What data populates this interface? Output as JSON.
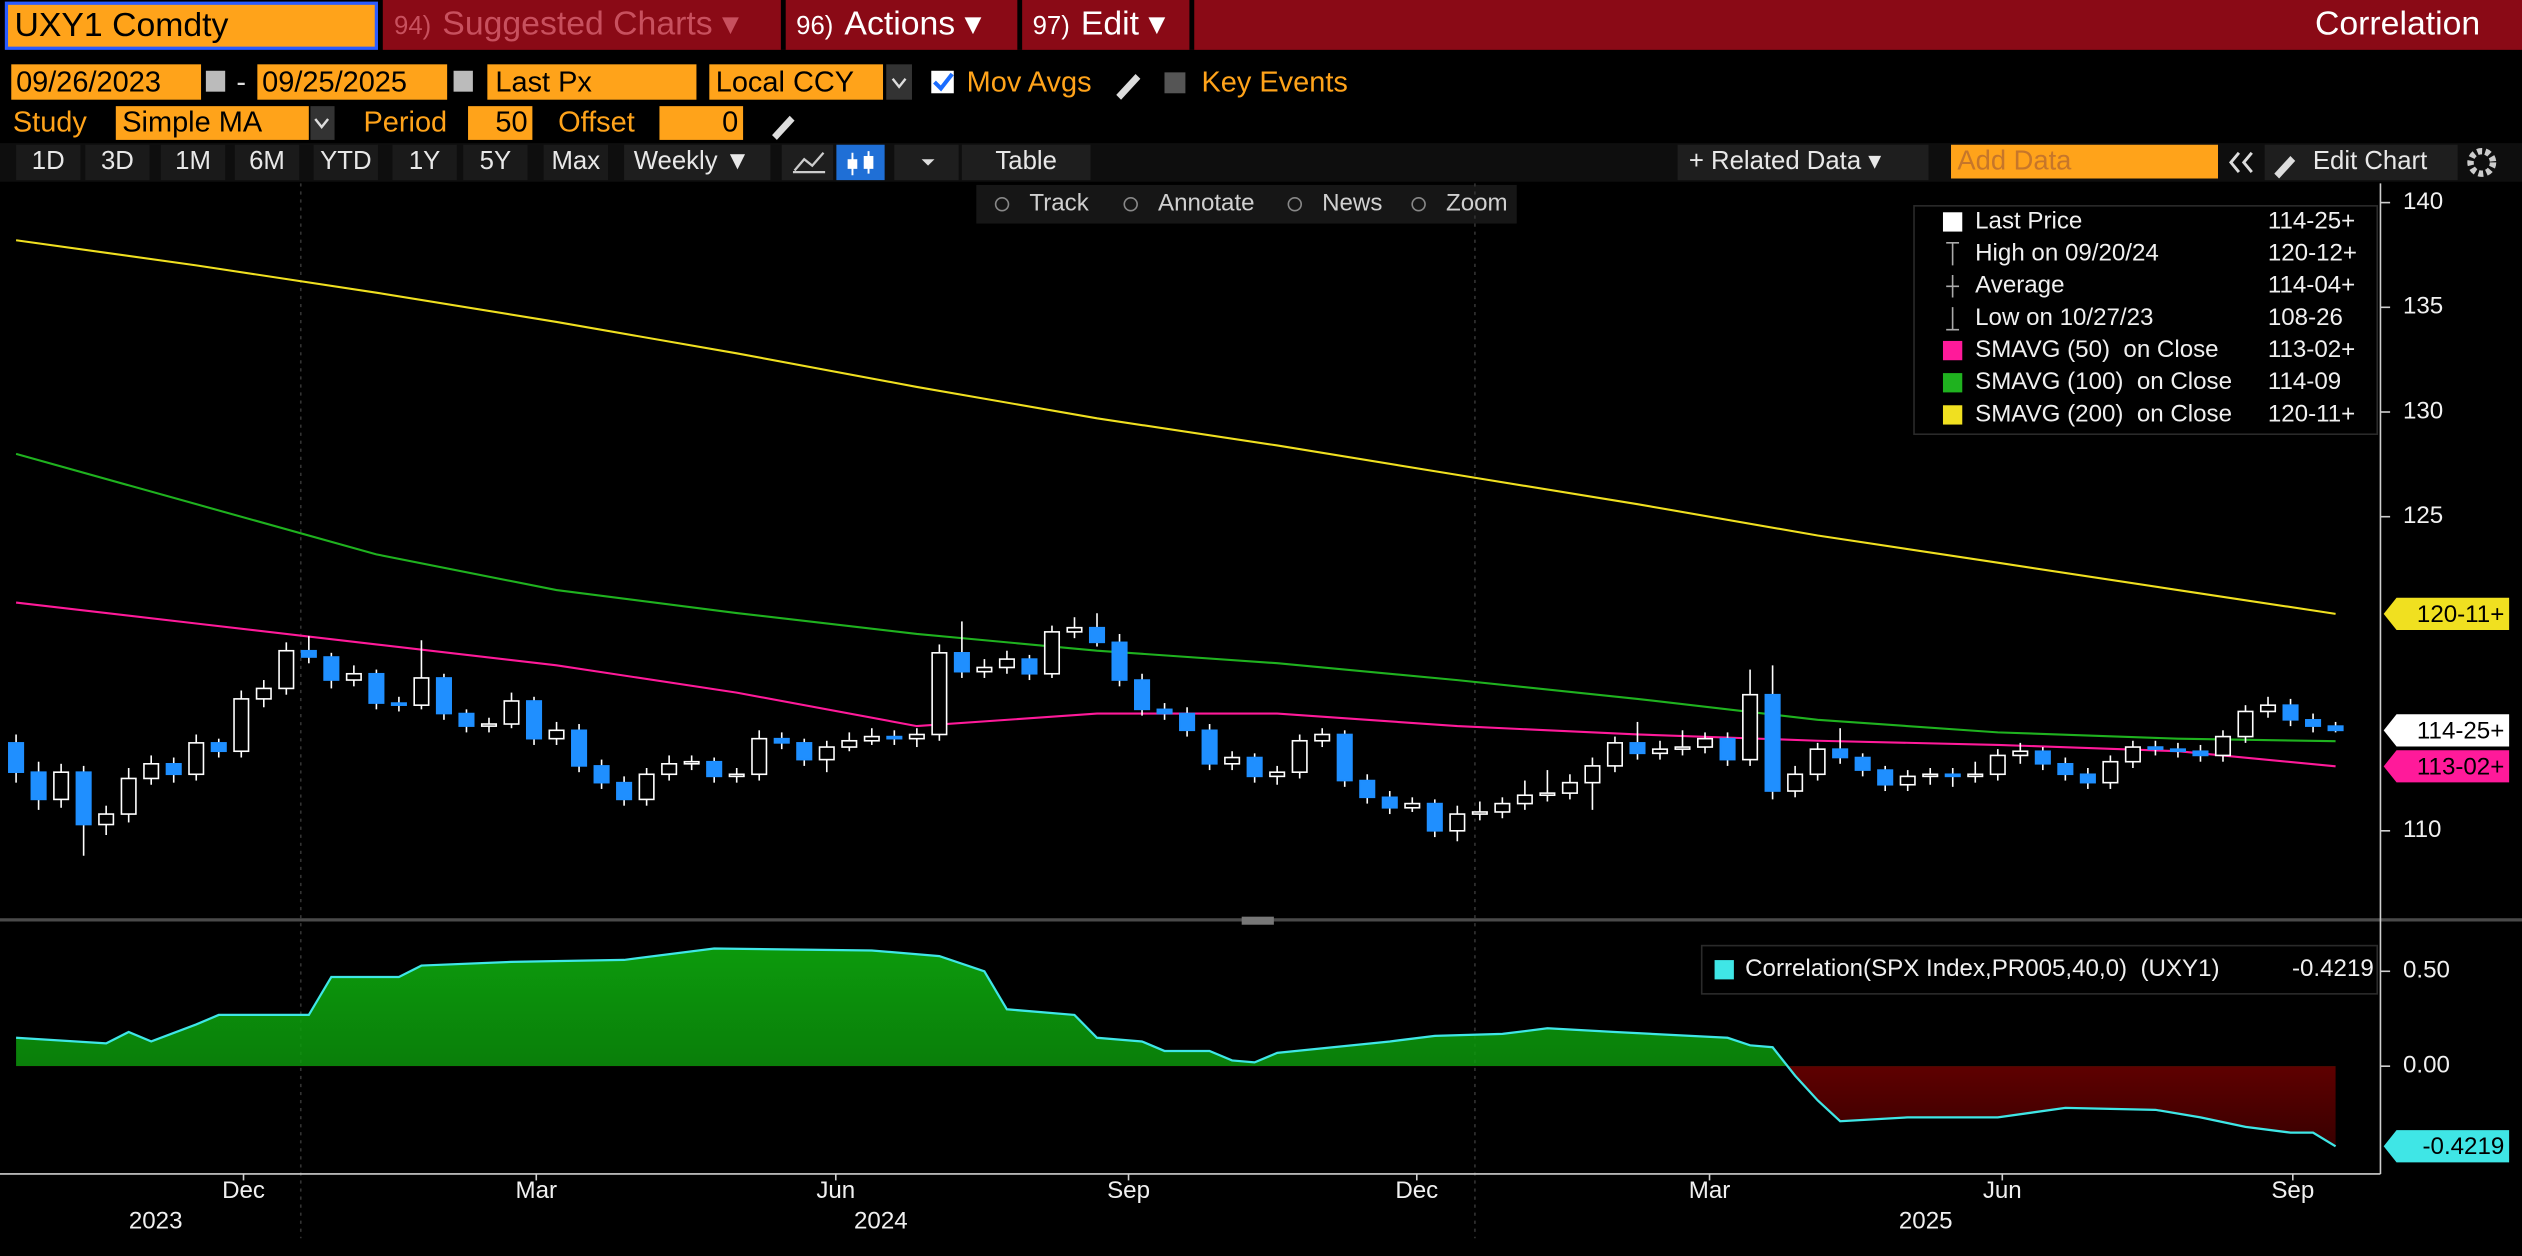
{
  "ui": {
    "ticker": "UXY1 Comdty",
    "menu": [
      {
        "num": "94)",
        "label": "Suggested Charts ▾"
      },
      {
        "num": "96)",
        "label": "Actions ▾"
      },
      {
        "num": "97)",
        "label": "Edit ▾"
      }
    ],
    "function_title": "Correlation",
    "start_date": "09/26/2023",
    "date_sep": "-",
    "end_date": "09/25/2025",
    "field": "Last Px",
    "currency": "Local CCY",
    "mov_avgs": "Mov Avgs",
    "key_events": "Key Events",
    "study_label": "Study",
    "study": "Simple MA",
    "period_label": "Period",
    "period": 50,
    "offset_label": "Offset",
    "offset": 0,
    "ranges": [
      "1D",
      "3D",
      "1M",
      "6M",
      "YTD",
      "1Y",
      "5Y",
      "Max"
    ],
    "frequency": "Weekly ▼",
    "table": "Table",
    "related": "+ Related Data ▾",
    "add_data": "Add Data",
    "edit_chart": "Edit Chart",
    "tools": [
      "Track",
      "Annotate",
      "News",
      "Zoom"
    ]
  },
  "chart_data": [
    {
      "type": "candlestick",
      "up_color": "#ffffff",
      "down_color": "#1f8fff",
      "xlim": [
        -0.714,
        104.993
      ],
      "ylim": [
        105.9,
        140.92
      ],
      "yticks": [
        110,
        125,
        130,
        135,
        140
      ],
      "grid": false,
      "legend": [
        {
          "name": "Last Price",
          "value": "114-25+"
        },
        {
          "name": "High on 09/20/24",
          "value": "120-12+"
        },
        {
          "name": "Average",
          "value": "114-04+"
        },
        {
          "name": "Low on 10/27/23",
          "value": "108-26"
        }
      ],
      "ohlc": [
        [
          114.2,
          114.6,
          112.3,
          112.8
        ],
        [
          112.8,
          113.3,
          111.0,
          111.5
        ],
        [
          111.5,
          113.2,
          111.1,
          112.8
        ],
        [
          112.8,
          113.1,
          108.81,
          110.3
        ],
        [
          110.3,
          111.2,
          109.8,
          110.8
        ],
        [
          110.8,
          113.0,
          110.4,
          112.5
        ],
        [
          112.5,
          113.6,
          112.2,
          113.2
        ],
        [
          113.2,
          113.5,
          112.3,
          112.7
        ],
        [
          112.7,
          114.6,
          112.4,
          114.2
        ],
        [
          114.2,
          114.4,
          113.5,
          113.8
        ],
        [
          113.8,
          116.7,
          113.5,
          116.3
        ],
        [
          116.3,
          117.2,
          115.9,
          116.8
        ],
        [
          116.8,
          119.0,
          116.5,
          118.6
        ],
        [
          118.6,
          119.3,
          118.0,
          118.3
        ],
        [
          118.3,
          118.5,
          116.8,
          117.2
        ],
        [
          117.2,
          117.9,
          116.9,
          117.5
        ],
        [
          117.5,
          117.7,
          115.8,
          116.1
        ],
        [
          116.1,
          116.4,
          115.7,
          116.0
        ],
        [
          116.0,
          119.1,
          115.8,
          117.3
        ],
        [
          117.3,
          117.5,
          115.3,
          115.6
        ],
        [
          115.6,
          115.8,
          114.7,
          115.0
        ],
        [
          115.0,
          115.4,
          114.7,
          115.1
        ],
        [
          115.1,
          116.6,
          114.9,
          116.2
        ],
        [
          116.2,
          116.4,
          114.1,
          114.4
        ],
        [
          114.4,
          115.2,
          114.1,
          114.8
        ],
        [
          114.8,
          115.1,
          112.8,
          113.1
        ],
        [
          113.1,
          113.4,
          112.0,
          112.3
        ],
        [
          112.3,
          112.6,
          111.2,
          111.5
        ],
        [
          111.5,
          113.0,
          111.2,
          112.7
        ],
        [
          112.7,
          113.6,
          112.4,
          113.2
        ],
        [
          113.2,
          113.6,
          112.9,
          113.3
        ],
        [
          113.3,
          113.5,
          112.3,
          112.6
        ],
        [
          112.6,
          113.0,
          112.3,
          112.7
        ],
        [
          112.7,
          114.8,
          112.4,
          114.4
        ],
        [
          114.4,
          114.7,
          113.9,
          114.2
        ],
        [
          114.2,
          114.4,
          113.1,
          113.4
        ],
        [
          113.4,
          114.3,
          112.8,
          114.0
        ],
        [
          114.0,
          114.7,
          113.8,
          114.3
        ],
        [
          114.3,
          114.9,
          114.1,
          114.5
        ],
        [
          114.5,
          114.8,
          114.1,
          114.4
        ],
        [
          114.4,
          114.9,
          114.0,
          114.6
        ],
        [
          114.6,
          118.9,
          114.3,
          118.5
        ],
        [
          118.5,
          120.0,
          117.3,
          117.6
        ],
        [
          117.6,
          118.2,
          117.3,
          117.8
        ],
        [
          117.8,
          118.6,
          117.5,
          118.2
        ],
        [
          118.2,
          118.4,
          117.2,
          117.5
        ],
        [
          117.5,
          119.8,
          117.3,
          119.5
        ],
        [
          119.5,
          120.2,
          119.2,
          119.7
        ],
        [
          119.7,
          120.39,
          118.8,
          119.0
        ],
        [
          119.0,
          119.4,
          116.9,
          117.2
        ],
        [
          117.2,
          117.5,
          115.5,
          115.8
        ],
        [
          115.8,
          116.1,
          115.3,
          115.6
        ],
        [
          115.6,
          115.9,
          114.5,
          114.8
        ],
        [
          114.8,
          115.1,
          112.9,
          113.2
        ],
        [
          113.2,
          113.8,
          112.9,
          113.5
        ],
        [
          113.5,
          113.7,
          112.3,
          112.6
        ],
        [
          112.6,
          113.1,
          112.2,
          112.8
        ],
        [
          112.8,
          114.6,
          112.5,
          114.3
        ],
        [
          114.3,
          114.9,
          114.0,
          114.6
        ],
        [
          114.6,
          114.8,
          112.1,
          112.4
        ],
        [
          112.4,
          112.7,
          111.3,
          111.6
        ],
        [
          111.6,
          111.9,
          110.8,
          111.1
        ],
        [
          111.1,
          111.6,
          110.9,
          111.3
        ],
        [
          111.3,
          111.5,
          109.7,
          110.0
        ],
        [
          110.0,
          111.2,
          109.5,
          110.8
        ],
        [
          110.8,
          111.4,
          110.5,
          110.9
        ],
        [
          110.9,
          111.6,
          110.6,
          111.3
        ],
        [
          111.3,
          112.4,
          111.0,
          111.7
        ],
        [
          111.7,
          112.9,
          111.4,
          111.8
        ],
        [
          111.8,
          112.7,
          111.5,
          112.3
        ],
        [
          112.3,
          113.5,
          111.0,
          113.1
        ],
        [
          113.1,
          114.5,
          112.8,
          114.2
        ],
        [
          114.2,
          115.2,
          113.4,
          113.7
        ],
        [
          113.7,
          114.3,
          113.4,
          113.9
        ],
        [
          113.9,
          114.8,
          113.6,
          114.0
        ],
        [
          114.0,
          114.7,
          113.7,
          114.4
        ],
        [
          114.4,
          114.7,
          113.1,
          113.4
        ],
        [
          113.4,
          117.7,
          113.1,
          116.5
        ],
        [
          116.5,
          117.9,
          111.5,
          111.9
        ],
        [
          111.9,
          113.1,
          111.6,
          112.7
        ],
        [
          112.7,
          114.2,
          112.4,
          113.9
        ],
        [
          113.9,
          114.9,
          113.2,
          113.5
        ],
        [
          113.5,
          113.7,
          112.6,
          112.9
        ],
        [
          112.9,
          113.1,
          111.9,
          112.2
        ],
        [
          112.2,
          112.9,
          111.9,
          112.6
        ],
        [
          112.6,
          113.0,
          112.2,
          112.7
        ],
        [
          112.7,
          113.0,
          112.1,
          112.6
        ],
        [
          112.6,
          113.3,
          112.3,
          112.7
        ],
        [
          112.7,
          113.9,
          112.4,
          113.6
        ],
        [
          113.6,
          114.2,
          113.2,
          113.8
        ],
        [
          113.8,
          114.0,
          112.9,
          113.2
        ],
        [
          113.2,
          113.5,
          112.4,
          112.7
        ],
        [
          112.7,
          113.0,
          112.0,
          112.3
        ],
        [
          112.3,
          113.6,
          112.0,
          113.3
        ],
        [
          113.3,
          114.3,
          113.0,
          114.0
        ],
        [
          114.0,
          114.3,
          113.6,
          113.9
        ],
        [
          113.9,
          114.2,
          113.5,
          113.8
        ],
        [
          113.8,
          114.1,
          113.3,
          113.6
        ],
        [
          113.6,
          114.8,
          113.3,
          114.5
        ],
        [
          114.5,
          116.0,
          114.2,
          115.7
        ],
        [
          115.7,
          116.4,
          115.4,
          116.0
        ],
        [
          116.0,
          116.3,
          115.0,
          115.3
        ],
        [
          115.3,
          115.6,
          114.7,
          115.0
        ],
        [
          115.0,
          115.2,
          114.7,
          114.797
        ]
      ],
      "series": [
        {
          "name": "SMAVG (50)  on Close",
          "last_label": "113-02+",
          "color": "#ff1a9a",
          "tag": true,
          "x": [
            0,
            8,
            16,
            24,
            32,
            40,
            48,
            56,
            64,
            72,
            80,
            88,
            96,
            103
          ],
          "values": [
            120.9,
            119.9,
            118.9,
            117.9,
            116.6,
            115.0,
            115.6,
            115.6,
            115.0,
            114.6,
            114.3,
            114.1,
            113.8,
            113.08
          ]
        },
        {
          "name": "SMAVG (100)  on Close",
          "last_label": "114-09",
          "color": "#1fb21f",
          "tag": false,
          "x": [
            0,
            8,
            16,
            24,
            32,
            40,
            48,
            56,
            64,
            72,
            80,
            88,
            96,
            103
          ],
          "values": [
            128.0,
            125.6,
            123.2,
            121.5,
            120.4,
            119.4,
            118.6,
            118.0,
            117.2,
            116.3,
            115.3,
            114.7,
            114.4,
            114.28
          ]
        },
        {
          "name": "SMAVG (200)  on Close",
          "last_label": "120-11+",
          "color": "#f0e020",
          "tag": true,
          "x": [
            0,
            8,
            16,
            24,
            32,
            40,
            48,
            56,
            64,
            72,
            80,
            88,
            96,
            103
          ],
          "values": [
            138.2,
            137.0,
            135.7,
            134.3,
            132.8,
            131.2,
            129.7,
            128.4,
            127.0,
            125.6,
            124.1,
            122.8,
            121.5,
            120.36
          ]
        }
      ]
    },
    {
      "type": "area",
      "xlim": [
        -0.714,
        104.993
      ],
      "ylim": [
        -0.568,
        0.72
      ],
      "yticks": [
        {
          "value": 0.5,
          "label": "0.50"
        },
        {
          "value": 0,
          "label": "0.00"
        }
      ],
      "pos_color": "#0c9a0c",
      "neg_color": "#a00000",
      "xticks": [
        {
          "value": 10.1,
          "label": "Dec"
        },
        {
          "value": 23.1,
          "label": "Mar"
        },
        {
          "value": 36.4,
          "label": "Jun"
        },
        {
          "value": 49.4,
          "label": "Sep"
        },
        {
          "value": 62.2,
          "label": "Dec"
        },
        {
          "value": 75.2,
          "label": "Mar"
        },
        {
          "value": 88.2,
          "label": "Jun"
        },
        {
          "value": 101.1,
          "label": "Sep"
        }
      ],
      "year_labels": [
        {
          "value": 6.2,
          "label": "2023"
        },
        {
          "value": 38.4,
          "label": "2024"
        },
        {
          "value": 84.8,
          "label": "2025"
        }
      ],
      "series": [
        {
          "name": "Correlation(SPX Index,PR005,40,0)  (UXY1)",
          "color": "#3fe6e6",
          "x": [
            0,
            4,
            5,
            6,
            8,
            9,
            13,
            14,
            17,
            18,
            22,
            27,
            31,
            38,
            41,
            43,
            44,
            47,
            48,
            50,
            51,
            53,
            54,
            55,
            56,
            61,
            63,
            66,
            68,
            71,
            76,
            77,
            78,
            79,
            80,
            81,
            84,
            88,
            91,
            95,
            97,
            99,
            101,
            102,
            103
          ],
          "values": [
            0.15,
            0.12,
            0.18,
            0.13,
            0.22,
            0.27,
            0.27,
            0.47,
            0.47,
            0.53,
            0.55,
            0.56,
            0.62,
            0.61,
            0.58,
            0.5,
            0.3,
            0.27,
            0.15,
            0.13,
            0.08,
            0.08,
            0.03,
            0.02,
            0.07,
            0.13,
            0.16,
            0.17,
            0.2,
            0.18,
            0.15,
            0.11,
            0.1,
            -0.05,
            -0.18,
            -0.29,
            -0.27,
            -0.27,
            -0.22,
            -0.23,
            -0.27,
            -0.32,
            -0.35,
            -0.35,
            -0.4219
          ]
        }
      ]
    }
  ]
}
